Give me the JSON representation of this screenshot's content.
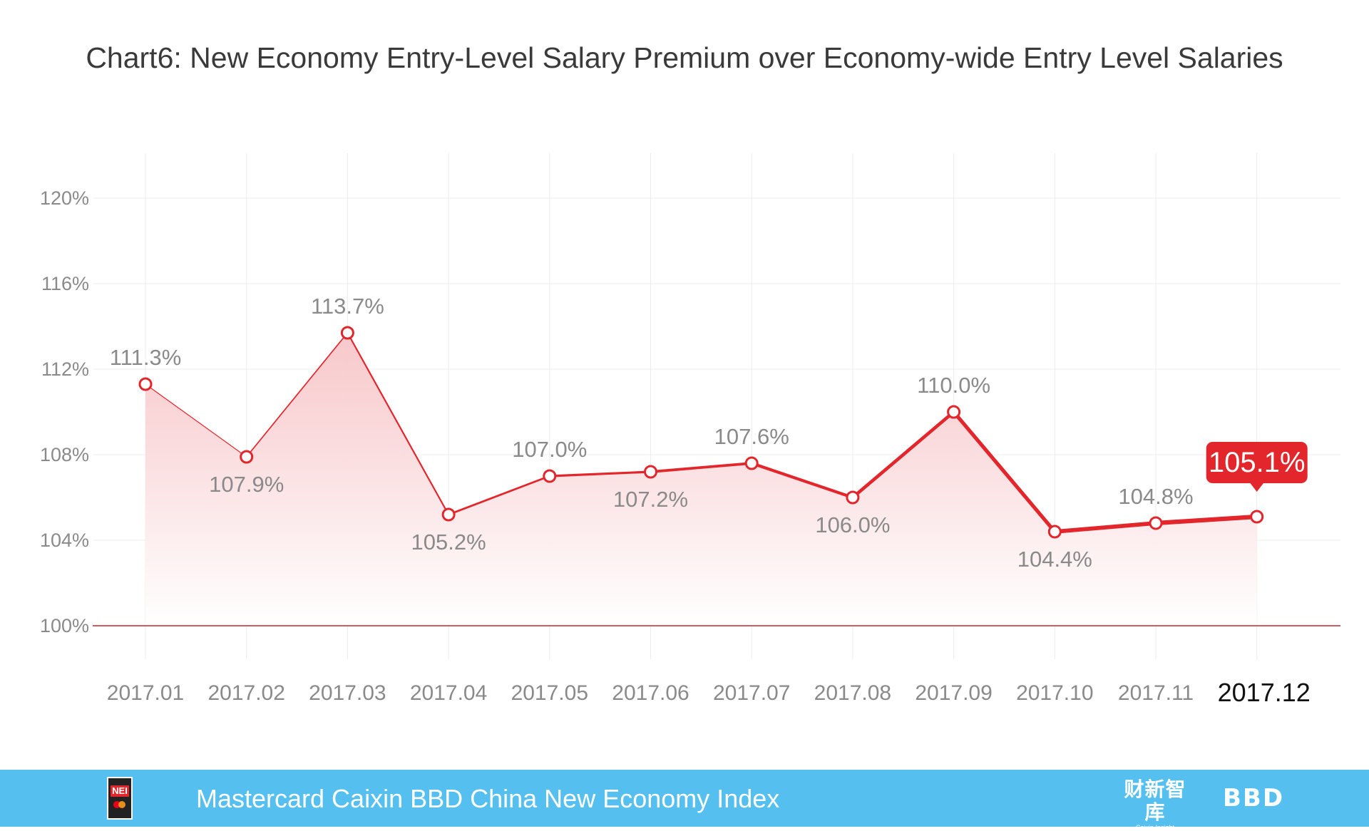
{
  "chart_data": {
    "type": "line",
    "title": "Chart6: New Economy Entry-Level Salary Premium over Economy-wide Entry Level Salaries",
    "xlabel": "",
    "ylabel": "",
    "categories": [
      "2017.01",
      "2017.02",
      "2017.03",
      "2017.04",
      "2017.05",
      "2017.06",
      "2017.07",
      "2017.08",
      "2017.09",
      "2017.10",
      "2017.11",
      "2017.12"
    ],
    "values": [
      111.3,
      107.9,
      113.7,
      105.2,
      107.0,
      107.2,
      107.6,
      106.0,
      110.0,
      104.4,
      104.8,
      105.1
    ],
    "data_labels": [
      "111.3%",
      "107.9%",
      "113.7%",
      "105.2%",
      "107.0%",
      "107.2%",
      "107.6%",
      "106.0%",
      "110.0%",
      "104.4%",
      "104.8%",
      "105.1%"
    ],
    "label_positions": [
      "above",
      "below",
      "above",
      "below",
      "above",
      "below",
      "above",
      "below",
      "above",
      "below",
      "above",
      "callout"
    ],
    "ylim": [
      100,
      120
    ],
    "yticks": [
      100,
      104,
      108,
      112,
      116,
      120
    ],
    "ytick_labels": [
      "100%",
      "104%",
      "108%",
      "112%",
      "116%",
      "120%"
    ],
    "highlight_index": 11,
    "grid": true,
    "colors": {
      "line": "#e2262c",
      "fill_top": "#f7c5c8",
      "fill_bottom": "#ffffff",
      "grid": "#ececec",
      "baseline": "#c2262c",
      "label": "#8a8a8a",
      "highlight_text": "#111111"
    }
  },
  "footer": {
    "logo_text": "NEI",
    "title": "Mastercard Caixin BBD China New Economy Index",
    "caixin_cn": "财新智库",
    "caixin_en": "Caixin Insight",
    "bbd": "BBD",
    "bg_color": "#55bff0"
  }
}
